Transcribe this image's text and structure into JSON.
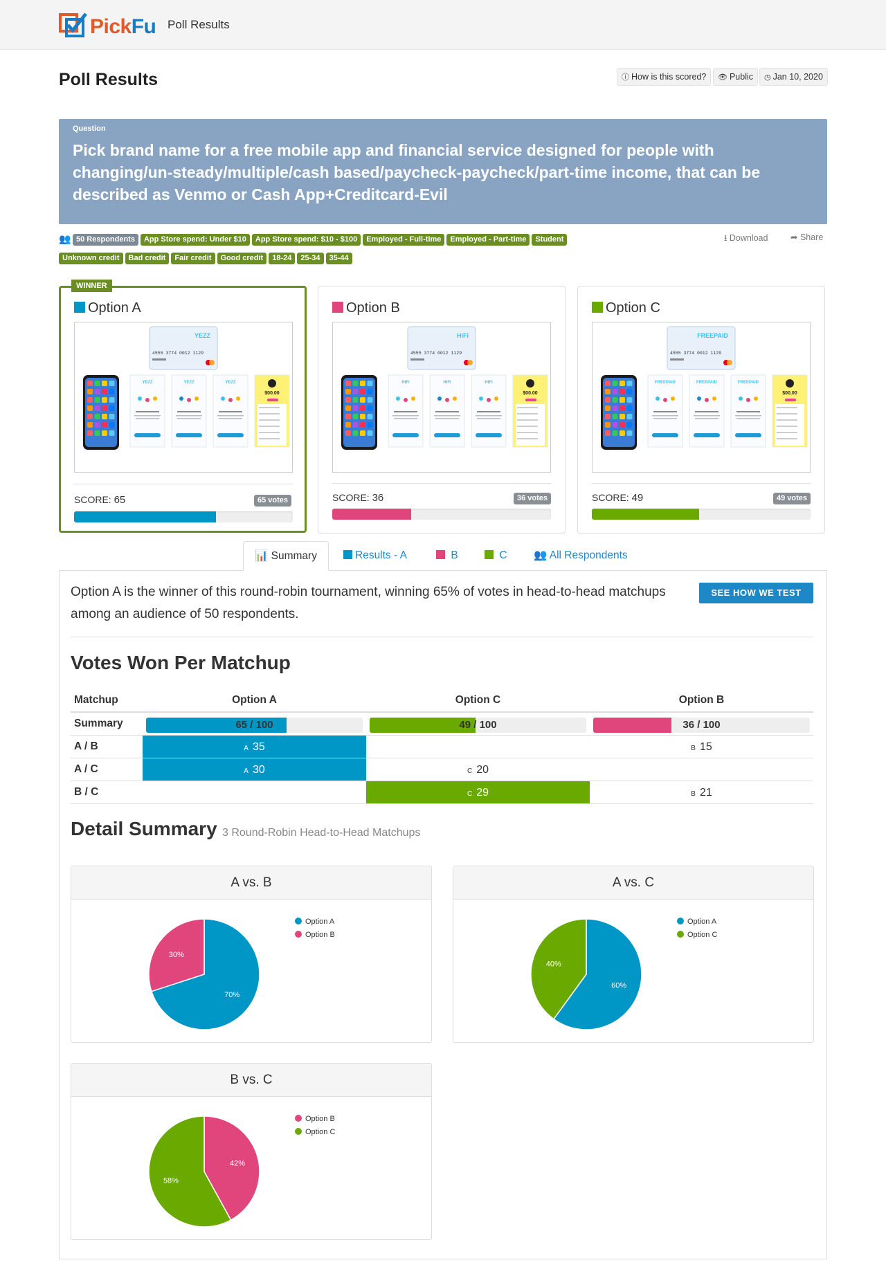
{
  "header": {
    "brand": "PickFu",
    "page_label": "Poll Results"
  },
  "page": {
    "title": "Poll Results",
    "how_scored": "How is this scored?",
    "visibility": "Public",
    "date": "Jan 10, 2020"
  },
  "question": {
    "label": "Question",
    "text": "Pick brand name for a free mobile app and financial service designed for people with changing/un-steady/multiple/cash based/paycheck-paycheck/part-time income, that can be described as Venmo or Cash App+Creditcard-Evil"
  },
  "filters": {
    "respondents": "50 Respondents",
    "tags": [
      "App Store spend: Under $10",
      "App Store spend: $10 - $100",
      "Employed - Full-time",
      "Employed - Part-time",
      "Student",
      "Unknown credit",
      "Bad credit",
      "Fair credit",
      "Good credit",
      "18-24",
      "25-34",
      "35-44"
    ],
    "download": "Download",
    "share": "Share"
  },
  "colors": {
    "option_a": "#0097c7",
    "option_b": "#e0457b",
    "option_c": "#6aaa00",
    "winner_border": "#6b8e23",
    "tag": "#6b8e23",
    "question_bg": "#89a4c2",
    "accent": "#1e88c7"
  },
  "winner_label": "WINNER",
  "options": [
    {
      "name": "Option A",
      "score_label": "SCORE:",
      "score": "65",
      "score_value": 65,
      "votes": "65 votes",
      "brand_text": "YEZZ"
    },
    {
      "name": "Option B",
      "score_label": "SCORE:",
      "score": "36",
      "score_value": 36,
      "votes": "36 votes",
      "brand_text": "HiFi"
    },
    {
      "name": "Option C",
      "score_label": "SCORE:",
      "score": "49",
      "score_value": 49,
      "votes": "49 votes",
      "brand_text": "FREEPAID"
    }
  ],
  "card_mockup": {
    "card_number": "4555  3774  0012  1129",
    "balance": "$00.00"
  },
  "tabs": {
    "summary": "Summary",
    "results": "Results - ",
    "a": "A",
    "b": "B",
    "c": "C",
    "all": "All Respondents"
  },
  "summary": {
    "intro": "Option A is the winner of this round-robin tournament, winning 65% of votes in head-to-head matchups among an audience of 50 respondents.",
    "see_how": "SEE HOW WE TEST"
  },
  "matchup_table": {
    "title": "Votes Won Per Matchup",
    "headers": [
      "Matchup",
      "Option A",
      "Option C",
      "Option B"
    ],
    "summary_row": {
      "label": "Summary",
      "a": "65 / 100",
      "c": "49 / 100",
      "b": "36 / 100",
      "a_val": 65,
      "c_val": 49,
      "b_val": 36
    },
    "rows": [
      {
        "label": "A / B",
        "a": {
          "letter": "A",
          "value": "35",
          "won": true
        },
        "c": null,
        "b": {
          "letter": "B",
          "value": "15",
          "won": false
        }
      },
      {
        "label": "A / C",
        "a": {
          "letter": "A",
          "value": "30",
          "won": true
        },
        "c": {
          "letter": "C",
          "value": "20",
          "won": false
        },
        "b": null
      },
      {
        "label": "B / C",
        "a": null,
        "c": {
          "letter": "C",
          "value": "29",
          "won": true
        },
        "b": {
          "letter": "B",
          "value": "21",
          "won": false
        }
      }
    ]
  },
  "detail": {
    "title": "Detail Summary",
    "subtitle": "3 Round-Robin Head-to-Head Matchups"
  },
  "chart_data": [
    {
      "type": "pie",
      "title": "A vs. B",
      "labels": [
        "Option A",
        "Option B"
      ],
      "values": [
        70,
        30
      ],
      "value_labels": [
        "70%",
        "30%"
      ],
      "colors": [
        "#0097c7",
        "#e0457b"
      ],
      "legend": "right"
    },
    {
      "type": "pie",
      "title": "A vs. C",
      "labels": [
        "Option A",
        "Option C"
      ],
      "values": [
        60,
        40
      ],
      "value_labels": [
        "60%",
        "40%"
      ],
      "colors": [
        "#0097c7",
        "#6aaa00"
      ],
      "legend": "right"
    },
    {
      "type": "pie",
      "title": "B vs. C",
      "labels": [
        "Option B",
        "Option C"
      ],
      "values": [
        42,
        58
      ],
      "value_labels": [
        "42%",
        "58%"
      ],
      "colors": [
        "#e0457b",
        "#6aaa00"
      ],
      "legend": "right"
    }
  ]
}
